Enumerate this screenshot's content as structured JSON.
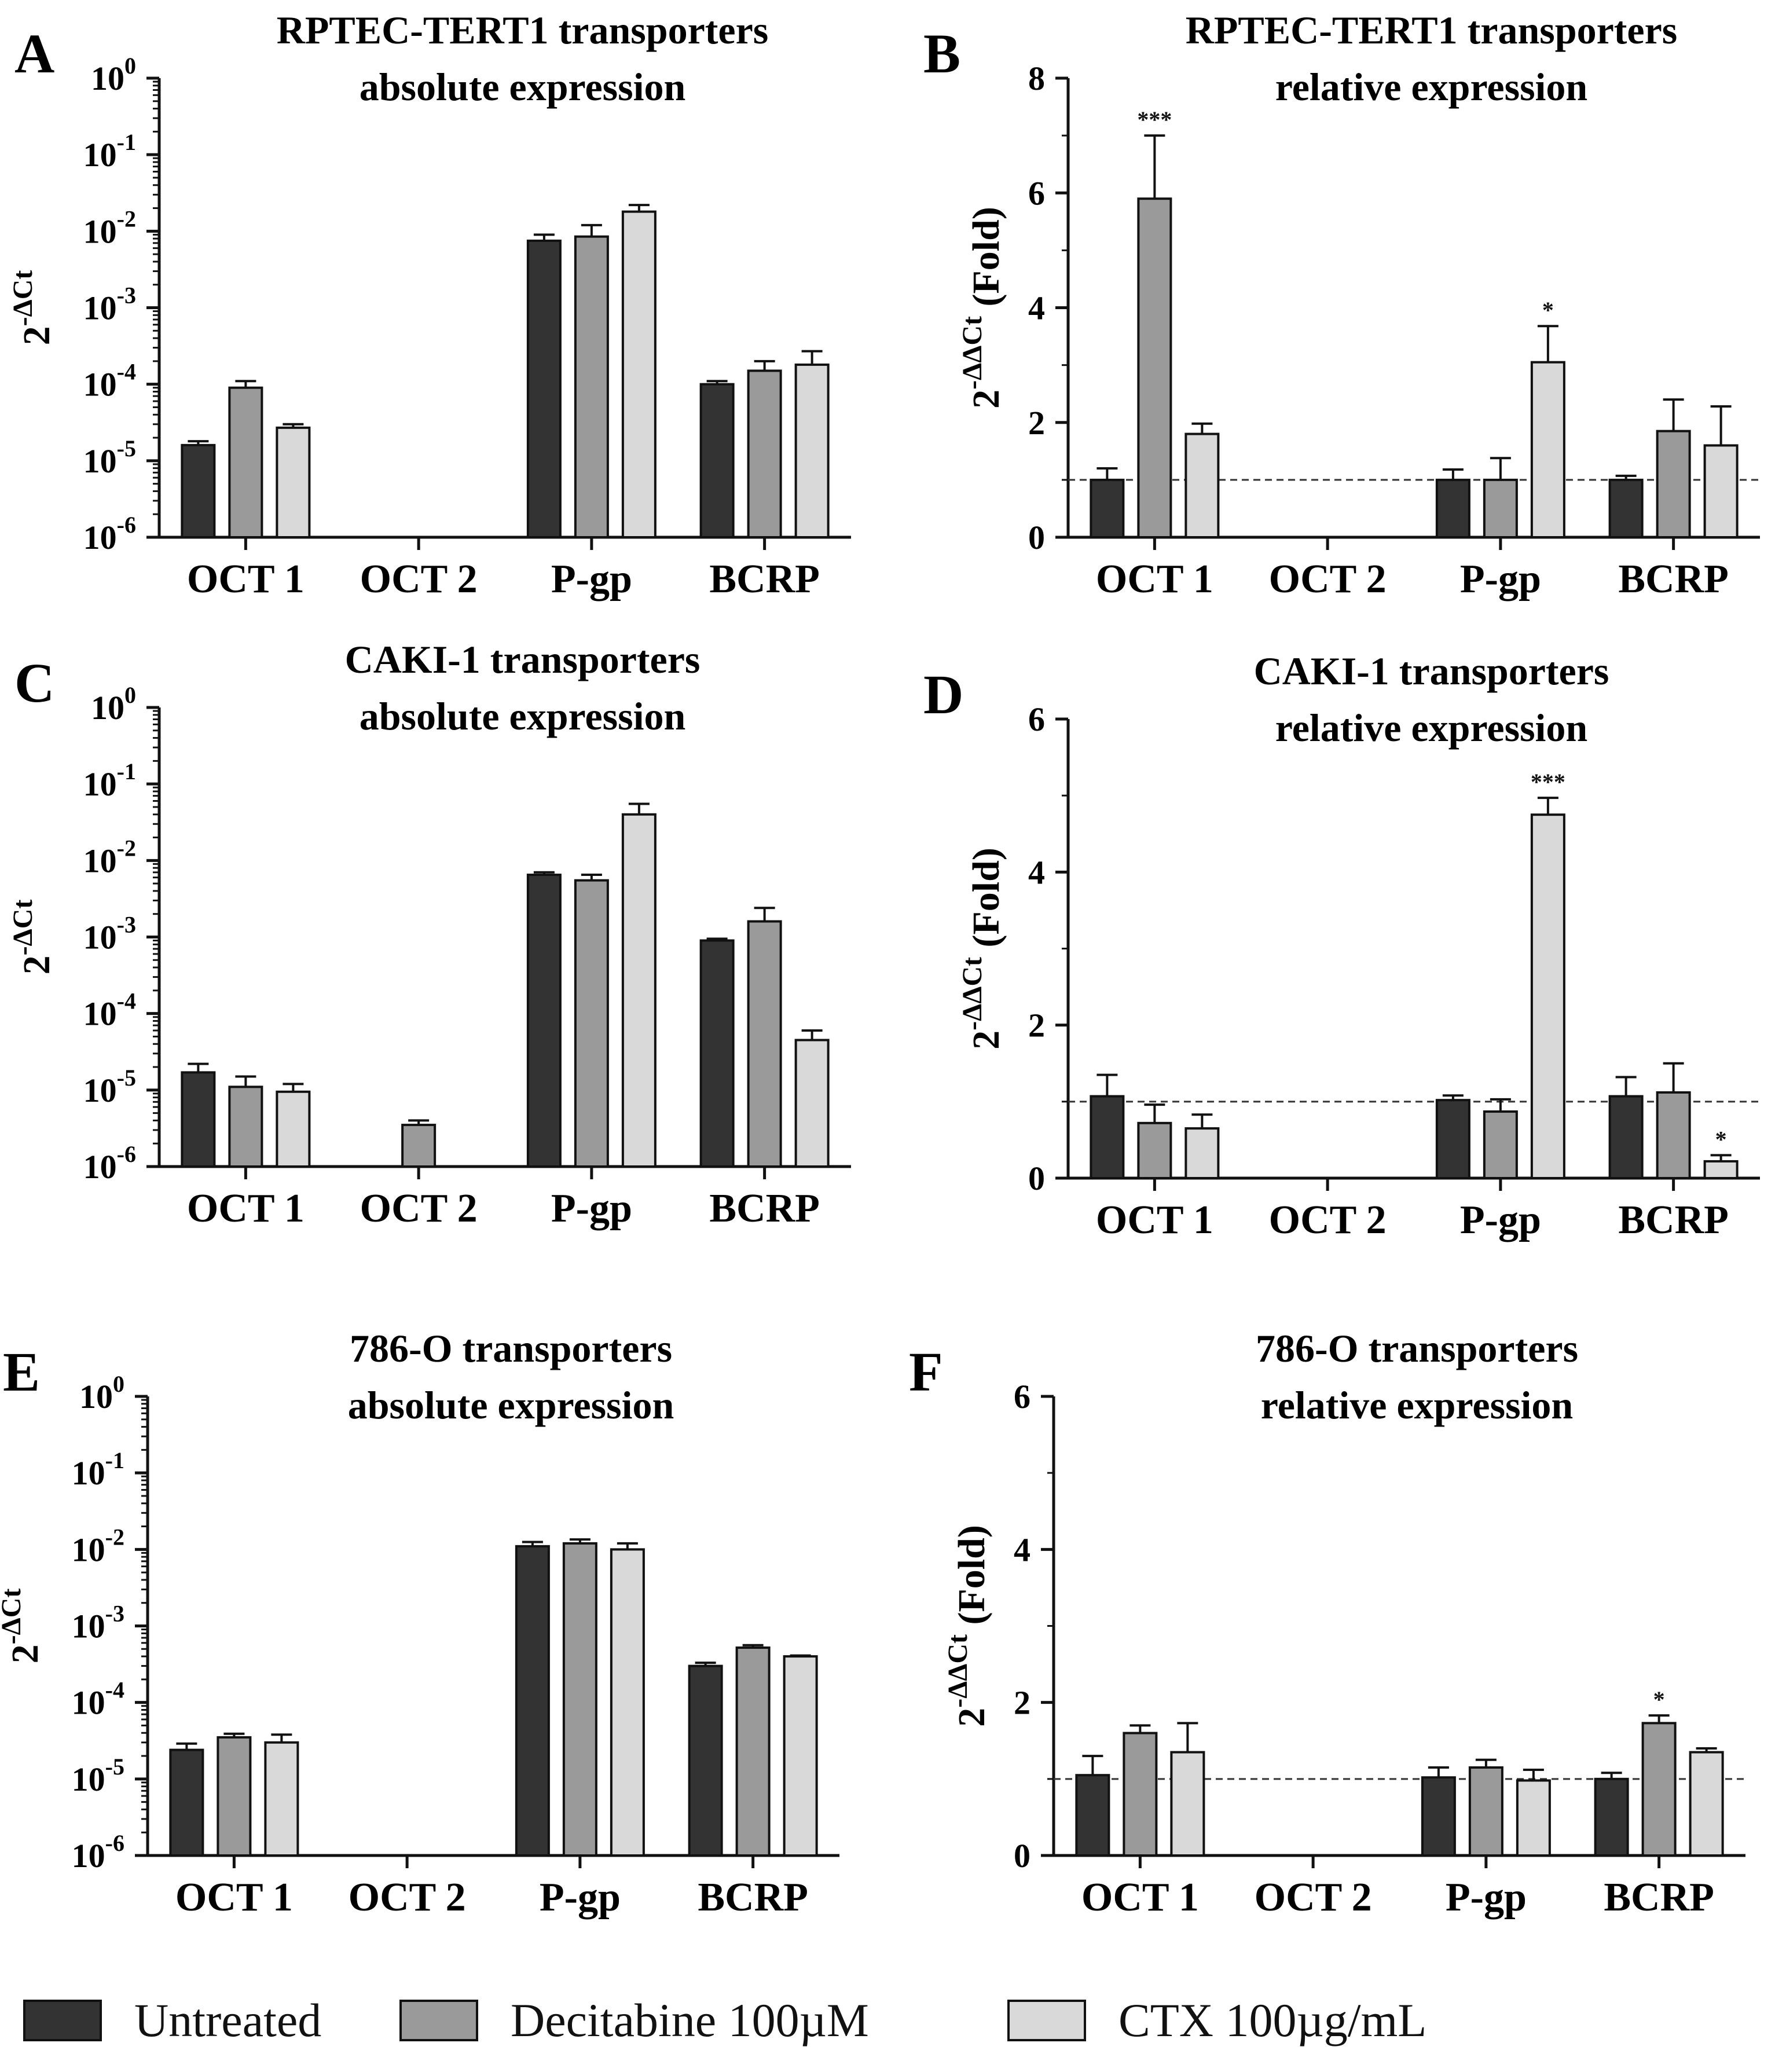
{
  "figure": {
    "legend": [
      {
        "label": "Untreated",
        "color": "#333333"
      },
      {
        "label": "Decitabine 100µM",
        "color": "#9a9a9a"
      },
      {
        "label": "CTX 100µg/mL",
        "color": "#d9d9d9"
      }
    ],
    "significance_color": "#111111"
  },
  "chart_data": [
    {
      "panel": "A",
      "type": "bar",
      "scale": "log",
      "title": [
        "RPTEC-TERT1 transporters",
        "absolute expression"
      ],
      "ylabel": "2-ΔCt",
      "ylabel_base": "2",
      "ylabel_exp": "-ΔCt",
      "ylabel_suffix": "",
      "categories": [
        "OCT 1",
        "OCT 2",
        "P-gp",
        "BCRP"
      ],
      "ylim": [
        -6,
        0
      ],
      "yticks": [
        {
          "base": "10",
          "exp": "0"
        },
        {
          "base": "10",
          "exp": "-1"
        },
        {
          "base": "10",
          "exp": "-2"
        },
        {
          "base": "10",
          "exp": "-3"
        },
        {
          "base": "10",
          "exp": "-4"
        },
        {
          "base": "10",
          "exp": "-5"
        },
        {
          "base": "10",
          "exp": "-6"
        }
      ],
      "series": [
        {
          "name": "Untreated",
          "values": [
            1.6e-05,
            null,
            0.0075,
            0.0001
          ],
          "errors": [
            1.8e-05,
            null,
            0.009,
            0.00011
          ]
        },
        {
          "name": "Decitabine 100µM",
          "values": [
            9e-05,
            null,
            0.0085,
            0.00015
          ],
          "errors": [
            0.00011,
            null,
            0.012,
            0.0002
          ]
        },
        {
          "name": "CTX 100µg/mL",
          "values": [
            2.7e-05,
            null,
            0.018,
            0.00018
          ],
          "errors": [
            3e-05,
            null,
            0.022,
            0.00027
          ]
        }
      ],
      "annotations": []
    },
    {
      "panel": "B",
      "type": "bar",
      "scale": "linear",
      "title": [
        "RPTEC-TERT1 transporters",
        "relative expression"
      ],
      "ylabel": "2-ΔΔCt (Fold)",
      "ylabel_base": "2",
      "ylabel_exp": "-ΔΔCt",
      "ylabel_suffix": " (Fold)",
      "categories": [
        "OCT 1",
        "OCT 2",
        "P-gp",
        "BCRP"
      ],
      "ylim": [
        0,
        8
      ],
      "yticks": [
        "0",
        "2",
        "4",
        "6",
        "8"
      ],
      "reference_line": 1,
      "series": [
        {
          "name": "Untreated",
          "values": [
            1.0,
            null,
            1.0,
            1.0
          ],
          "errors": [
            1.2,
            null,
            1.18,
            1.07
          ]
        },
        {
          "name": "Decitabine 100µM",
          "values": [
            5.9,
            null,
            1.0,
            1.85
          ],
          "errors": [
            7.0,
            null,
            1.38,
            2.4
          ]
        },
        {
          "name": "CTX 100µg/mL",
          "values": [
            1.8,
            null,
            3.05,
            1.6
          ],
          "errors": [
            1.98,
            null,
            3.68,
            2.28
          ]
        }
      ],
      "annotations": [
        {
          "category": "OCT 1",
          "series": "Decitabine 100µM",
          "text": "***"
        },
        {
          "category": "P-gp",
          "series": "CTX 100µg/mL",
          "text": "*"
        }
      ]
    },
    {
      "panel": "C",
      "type": "bar",
      "scale": "log",
      "title": [
        "CAKI-1 transporters",
        "absolute expression"
      ],
      "ylabel": "2-ΔCt",
      "ylabel_base": "2",
      "ylabel_exp": "-ΔCt",
      "ylabel_suffix": "",
      "categories": [
        "OCT 1",
        "OCT 2",
        "P-gp",
        "BCRP"
      ],
      "ylim": [
        -6,
        0
      ],
      "yticks": [
        {
          "base": "10",
          "exp": "0"
        },
        {
          "base": "10",
          "exp": "-1"
        },
        {
          "base": "10",
          "exp": "-2"
        },
        {
          "base": "10",
          "exp": "-3"
        },
        {
          "base": "10",
          "exp": "-4"
        },
        {
          "base": "10",
          "exp": "-5"
        },
        {
          "base": "10",
          "exp": "-6"
        }
      ],
      "series": [
        {
          "name": "Untreated",
          "values": [
            1.7e-05,
            null,
            0.0065,
            0.0009
          ],
          "errors": [
            2.2e-05,
            null,
            0.007,
            0.00095
          ]
        },
        {
          "name": "Decitabine 100µM",
          "values": [
            1.1e-05,
            3.5e-06,
            0.0055,
            0.0016
          ],
          "errors": [
            1.5e-05,
            4e-06,
            0.0065,
            0.0024
          ]
        },
        {
          "name": "CTX 100µg/mL",
          "values": [
            9.5e-06,
            null,
            0.04,
            4.5e-05
          ],
          "errors": [
            1.2e-05,
            null,
            0.055,
            6e-05
          ]
        }
      ],
      "annotations": []
    },
    {
      "panel": "D",
      "type": "bar",
      "scale": "linear",
      "title": [
        "CAKI-1 transporters",
        "relative expression"
      ],
      "ylabel": "2-ΔΔCt (Fold)",
      "ylabel_base": "2",
      "ylabel_exp": "-ΔΔCt",
      "ylabel_suffix": " (Fold)",
      "categories": [
        "OCT 1",
        "OCT 2",
        "P-gp",
        "BCRP"
      ],
      "ylim": [
        0,
        6
      ],
      "yticks": [
        "0",
        "2",
        "4",
        "6"
      ],
      "reference_line": 1,
      "series": [
        {
          "name": "Untreated",
          "values": [
            1.07,
            null,
            1.02,
            1.07
          ],
          "errors": [
            1.35,
            null,
            1.08,
            1.32
          ]
        },
        {
          "name": "Decitabine 100µM",
          "values": [
            0.72,
            null,
            0.87,
            1.12
          ],
          "errors": [
            0.96,
            null,
            1.03,
            1.5
          ]
        },
        {
          "name": "CTX 100µg/mL",
          "values": [
            0.65,
            null,
            4.75,
            0.22
          ],
          "errors": [
            0.83,
            null,
            4.97,
            0.3
          ]
        }
      ],
      "annotations": [
        {
          "category": "P-gp",
          "series": "CTX 100µg/mL",
          "text": "***"
        },
        {
          "category": "BCRP",
          "series": "CTX 100µg/mL",
          "text": "*"
        }
      ]
    },
    {
      "panel": "E",
      "type": "bar",
      "scale": "log",
      "title": [
        "786-O transporters",
        "absolute expression"
      ],
      "ylabel": "2-ΔCt",
      "ylabel_base": "2",
      "ylabel_exp": "-ΔCt",
      "ylabel_suffix": "",
      "categories": [
        "OCT 1",
        "OCT 2",
        "P-gp",
        "BCRP"
      ],
      "ylim": [
        -6,
        0
      ],
      "yticks": [
        {
          "base": "10",
          "exp": "0"
        },
        {
          "base": "10",
          "exp": "-1"
        },
        {
          "base": "10",
          "exp": "-2"
        },
        {
          "base": "10",
          "exp": "-3"
        },
        {
          "base": "10",
          "exp": "-4"
        },
        {
          "base": "10",
          "exp": "-5"
        },
        {
          "base": "10",
          "exp": "-6"
        }
      ],
      "series": [
        {
          "name": "Untreated",
          "values": [
            2.4e-05,
            null,
            0.011,
            0.0003
          ],
          "errors": [
            2.9e-05,
            null,
            0.0125,
            0.00033
          ]
        },
        {
          "name": "Decitabine 100µM",
          "values": [
            3.5e-05,
            null,
            0.012,
            0.00052
          ],
          "errors": [
            3.9e-05,
            null,
            0.0135,
            0.00056
          ]
        },
        {
          "name": "CTX 100µg/mL",
          "values": [
            3e-05,
            null,
            0.01,
            0.0004
          ],
          "errors": [
            3.8e-05,
            null,
            0.012,
            0.00041
          ]
        }
      ],
      "annotations": []
    },
    {
      "panel": "F",
      "type": "bar",
      "scale": "linear",
      "title": [
        "786-O transporters",
        "relative expression"
      ],
      "ylabel": "2-ΔΔCt (Fold)",
      "ylabel_base": "2",
      "ylabel_exp": "-ΔΔCt",
      "ylabel_suffix": " (Fold)",
      "categories": [
        "OCT 1",
        "OCT 2",
        "P-gp",
        "BCRP"
      ],
      "ylim": [
        0,
        6
      ],
      "yticks": [
        "0",
        "2",
        "4",
        "6"
      ],
      "reference_line": 1,
      "series": [
        {
          "name": "Untreated",
          "values": [
            1.05,
            null,
            1.02,
            1.0
          ],
          "errors": [
            1.3,
            null,
            1.15,
            1.08
          ]
        },
        {
          "name": "Decitabine 100µM",
          "values": [
            1.6,
            null,
            1.15,
            1.73
          ],
          "errors": [
            1.7,
            null,
            1.25,
            1.83
          ]
        },
        {
          "name": "CTX 100µg/mL",
          "values": [
            1.35,
            null,
            0.98,
            1.35
          ],
          "errors": [
            1.73,
            null,
            1.12,
            1.4
          ]
        }
      ],
      "annotations": [
        {
          "category": "BCRP",
          "series": "Decitabine 100µM",
          "text": "*"
        }
      ]
    }
  ]
}
